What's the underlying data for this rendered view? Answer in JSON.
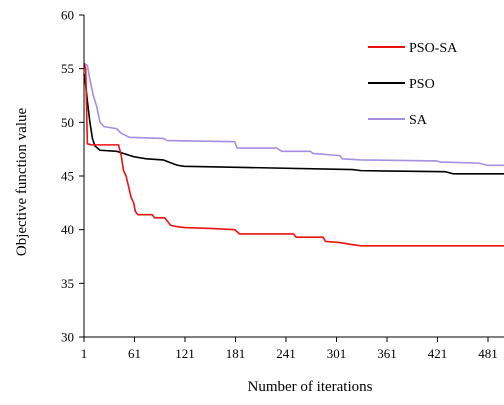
{
  "chart_data": {
    "type": "line",
    "title": "",
    "xlabel": "Number of iterations",
    "ylabel": "Objective function value",
    "xlim": [
      1,
      500
    ],
    "ylim": [
      30,
      60
    ],
    "x_ticks": [
      1,
      61,
      121,
      181,
      241,
      301,
      361,
      421,
      481
    ],
    "y_ticks": [
      30,
      35,
      40,
      45,
      50,
      55,
      60
    ],
    "grid": false,
    "legend_position": "top-right",
    "series": [
      {
        "name": "PSO-SA",
        "color": "#ee1111",
        "points": [
          [
            1,
            55.5
          ],
          [
            3,
            55.0
          ],
          [
            5,
            48.0
          ],
          [
            10,
            47.9
          ],
          [
            42,
            47.9
          ],
          [
            45,
            47.0
          ],
          [
            48,
            45.5
          ],
          [
            51,
            45.0
          ],
          [
            54,
            44.0
          ],
          [
            57,
            43.0
          ],
          [
            60,
            42.5
          ],
          [
            62,
            41.7
          ],
          [
            65,
            41.4
          ],
          [
            82,
            41.4
          ],
          [
            85,
            41.1
          ],
          [
            97,
            41.1
          ],
          [
            100,
            40.8
          ],
          [
            104,
            40.4
          ],
          [
            110,
            40.3
          ],
          [
            120,
            40.2
          ],
          [
            155,
            40.1
          ],
          [
            180,
            40.0
          ],
          [
            186,
            39.6
          ],
          [
            250,
            39.6
          ],
          [
            253,
            39.3
          ],
          [
            285,
            39.3
          ],
          [
            288,
            38.9
          ],
          [
            305,
            38.8
          ],
          [
            320,
            38.6
          ],
          [
            330,
            38.5
          ],
          [
            500,
            38.5
          ]
        ]
      },
      {
        "name": "PSO",
        "color": "#000000",
        "points": [
          [
            1,
            54.5
          ],
          [
            3,
            53.5
          ],
          [
            5,
            52.0
          ],
          [
            8,
            50.0
          ],
          [
            11,
            48.5
          ],
          [
            14,
            47.8
          ],
          [
            20,
            47.4
          ],
          [
            40,
            47.3
          ],
          [
            48,
            47.1
          ],
          [
            60,
            46.8
          ],
          [
            75,
            46.6
          ],
          [
            95,
            46.5
          ],
          [
            105,
            46.2
          ],
          [
            112,
            46.0
          ],
          [
            120,
            45.9
          ],
          [
            190,
            45.8
          ],
          [
            320,
            45.6
          ],
          [
            330,
            45.5
          ],
          [
            430,
            45.4
          ],
          [
            440,
            45.2
          ],
          [
            500,
            45.2
          ]
        ]
      },
      {
        "name": "SA",
        "color": "#a58fe0",
        "points": [
          [
            1,
            55.5
          ],
          [
            5,
            55.3
          ],
          [
            8,
            54.0
          ],
          [
            12,
            52.5
          ],
          [
            16,
            51.5
          ],
          [
            20,
            50.0
          ],
          [
            25,
            49.6
          ],
          [
            40,
            49.4
          ],
          [
            45,
            49.0
          ],
          [
            55,
            48.6
          ],
          [
            95,
            48.5
          ],
          [
            100,
            48.3
          ],
          [
            180,
            48.2
          ],
          [
            183,
            47.6
          ],
          [
            230,
            47.6
          ],
          [
            236,
            47.3
          ],
          [
            270,
            47.3
          ],
          [
            273,
            47.1
          ],
          [
            305,
            46.9
          ],
          [
            308,
            46.6
          ],
          [
            330,
            46.5
          ],
          [
            420,
            46.4
          ],
          [
            425,
            46.3
          ],
          [
            470,
            46.2
          ],
          [
            480,
            46.0
          ],
          [
            500,
            46.0
          ]
        ]
      }
    ]
  }
}
